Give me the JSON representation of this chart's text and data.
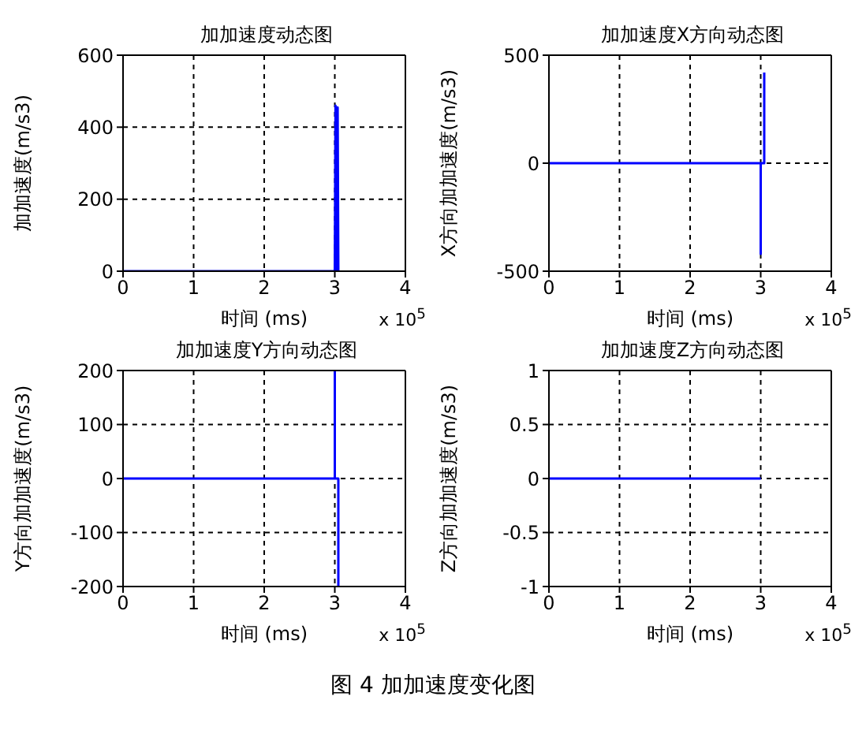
{
  "chart_data": [
    {
      "type": "line",
      "title": "加加速度动态图",
      "xlabel": "时间 (ms)",
      "ylabel": "加加速度(m/s3)",
      "x": [
        0,
        3.0,
        3.01,
        3.02,
        3.04,
        3.05
      ],
      "series": [
        {
          "color": "#0000ff",
          "values": [
            0,
            0,
            460,
            0,
            455,
            0
          ]
        }
      ],
      "xlim": [
        0,
        4
      ],
      "xticks": [
        0,
        1,
        2,
        3,
        4
      ],
      "ylim": [
        0,
        600
      ],
      "yticks": [
        0,
        200,
        400,
        600
      ],
      "grid": true,
      "annotations": [
        "x 10$^{5}$"
      ]
    },
    {
      "type": "line",
      "title": "加加速度X方向动态图",
      "xlabel": "时间 (ms)",
      "ylabel": "X方向加加速度(m/s3)",
      "x": [
        0,
        3.0,
        3.0,
        3.0,
        3.05,
        3.05
      ],
      "series": [
        {
          "color": "#0000ff",
          "values": [
            0,
            0,
            -420,
            0,
            0,
            420
          ]
        }
      ],
      "xlim": [
        0,
        4
      ],
      "xticks": [
        0,
        1,
        2,
        3,
        4
      ],
      "ylim": [
        -500,
        500
      ],
      "yticks": [
        -500,
        0,
        500
      ],
      "grid": true,
      "annotations": [
        "x 10$^{5}$"
      ]
    },
    {
      "type": "line",
      "title": "加加速度Y方向动态图",
      "xlabel": "时间 (ms)",
      "ylabel": "Y方向加加速度(m/s3)",
      "x": [
        0,
        3.0,
        3.0,
        3.0,
        3.05,
        3.05
      ],
      "series": [
        {
          "color": "#0000ff",
          "values": [
            0,
            0,
            200,
            0,
            0,
            -200
          ]
        }
      ],
      "xlim": [
        0,
        4
      ],
      "xticks": [
        0,
        1,
        2,
        3,
        4
      ],
      "ylim": [
        -200,
        200
      ],
      "yticks": [
        -200,
        -100,
        0,
        100,
        200
      ],
      "grid": true,
      "annotations": [
        "x 10$^{5}$"
      ]
    },
    {
      "type": "line",
      "title": "加加速度Z方向动态图",
      "xlabel": "时间 (ms)",
      "ylabel": "Z方向加加速度(m/s3)",
      "x": [
        0,
        3.0
      ],
      "series": [
        {
          "color": "#0000ff",
          "values": [
            0,
            0
          ]
        }
      ],
      "xlim": [
        0,
        4
      ],
      "xticks": [
        0,
        1,
        2,
        3,
        4
      ],
      "ylim": [
        -1,
        1
      ],
      "yticks": [
        -1,
        -0.5,
        0,
        0.5,
        1
      ],
      "grid": true,
      "annotations": [
        "x 10$^{5}$",
        "图 4 加加速度变化图"
      ]
    }
  ]
}
